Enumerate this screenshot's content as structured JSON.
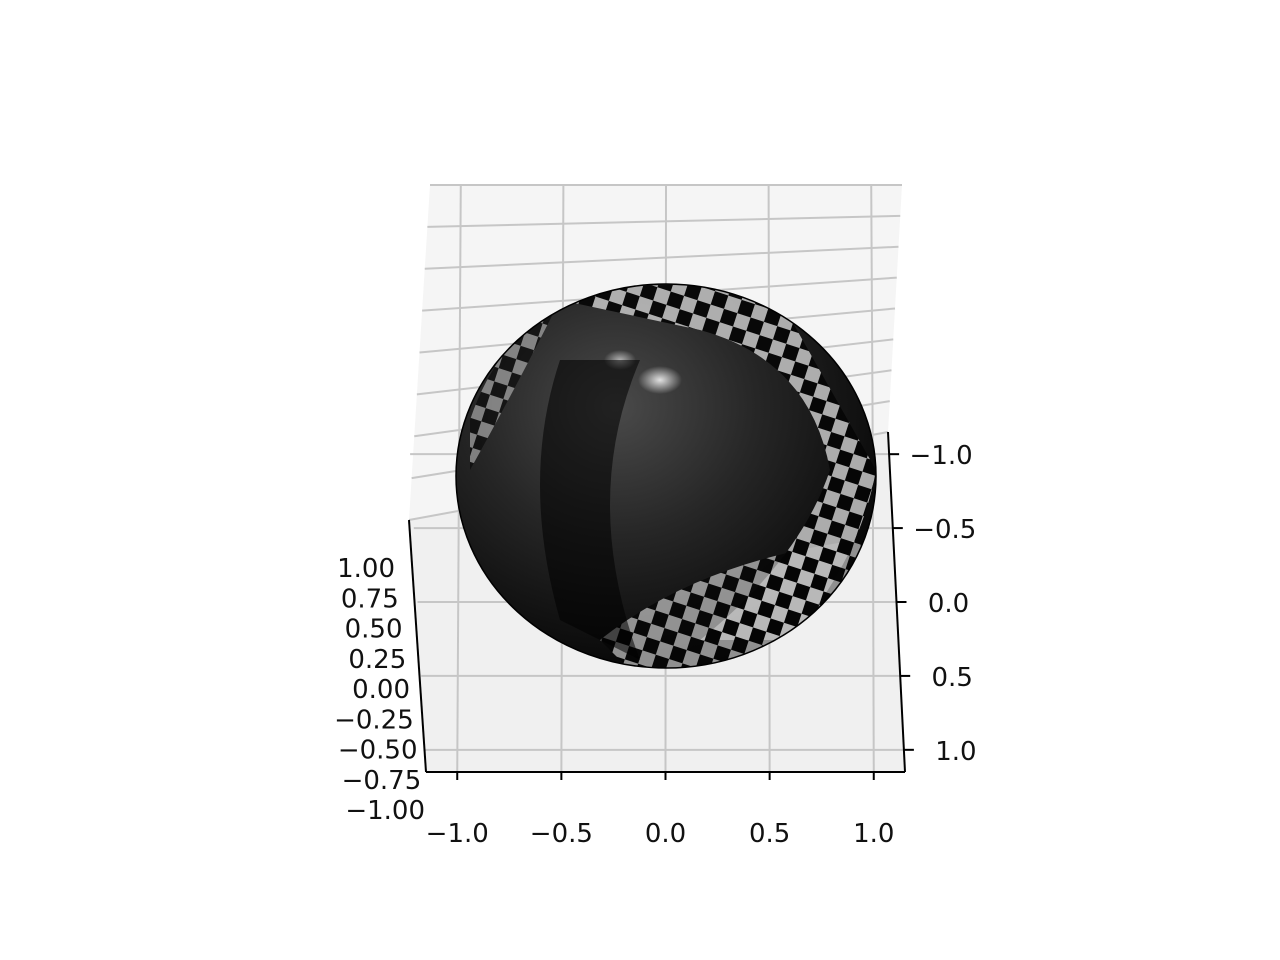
{
  "chart_data": {
    "type": "surface3d",
    "title": "",
    "surface": "sphere",
    "surface_color": "#000000",
    "reflection_pattern": "checkerboard",
    "pane_color": "#f2f2f2",
    "grid": true,
    "x_axis": {
      "range": [
        -1.15,
        1.15
      ],
      "ticks": [
        -1.0,
        -0.5,
        0.0,
        0.5,
        1.0
      ],
      "tick_labels": [
        "−1.0",
        "−0.5",
        "0.0",
        "0.5",
        "1.0"
      ]
    },
    "y_axis": {
      "range": [
        -1.15,
        1.15
      ],
      "ticks": [
        -1.0,
        -0.5,
        0.0,
        0.5,
        1.0
      ],
      "tick_labels": [
        "−1.0",
        "−0.5",
        "0.0",
        "0.5",
        "1.0"
      ]
    },
    "z_axis": {
      "range": [
        -1.0,
        1.0
      ],
      "ticks": [
        1.0,
        0.75,
        0.5,
        0.25,
        0.0,
        -0.25,
        -0.5,
        -0.75,
        -1.0
      ],
      "tick_labels": [
        "1.00",
        "0.75",
        "0.50",
        "0.25",
        "0.00",
        "−0.25",
        "−0.50",
        "−0.75",
        "−1.00"
      ]
    }
  }
}
